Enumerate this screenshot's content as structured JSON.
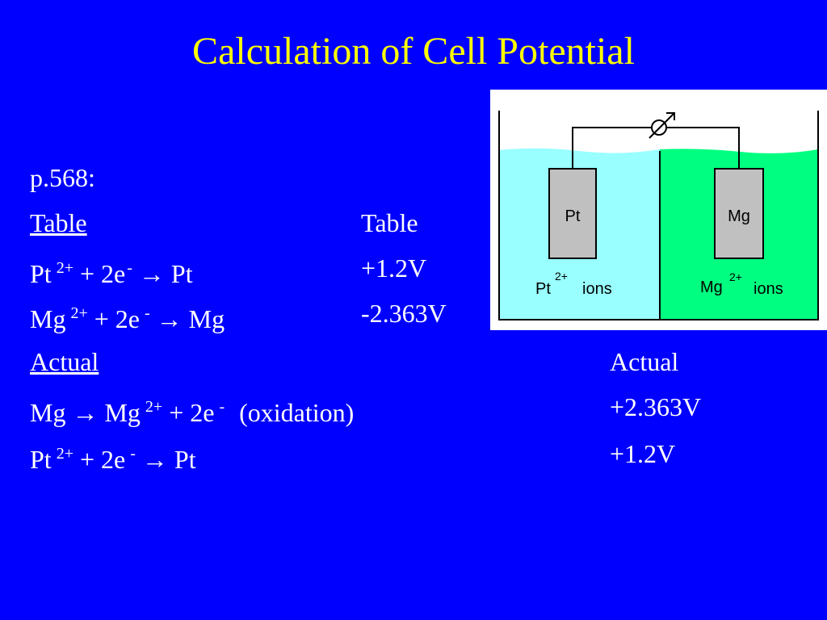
{
  "title": "Calculation of Cell Potential",
  "reference": "p.568:",
  "table_header": [
    "Table",
    "Table"
  ],
  "table_rows": [
    {
      "equation": [
        "Pt",
        "2+",
        "+ 2e",
        "-",
        "→",
        "Pt"
      ],
      "potential": "+1.2V"
    },
    {
      "equation": [
        "Mg",
        "2+",
        "+ 2e",
        "-",
        "→",
        "Mg"
      ],
      "potential": "-2.363V"
    }
  ],
  "actual_header": [
    "Actual",
    "Actual"
  ],
  "actual_rows": [
    {
      "equation": [
        "Mg",
        "→",
        "Mg",
        "2+",
        "+ 2e",
        "-",
        "(oxidation)"
      ],
      "potential": "+2.363V"
    },
    {
      "equation": [
        "Pt",
        "2+",
        "+ 2e",
        "-",
        "→",
        "Pt"
      ],
      "potential": "+1.2V"
    }
  ],
  "diagram": {
    "left_electrode": "Pt",
    "right_electrode": "Mg",
    "left_solution": [
      "Pt",
      "2+",
      "ions"
    ],
    "right_solution": [
      "Mg",
      "2+",
      "ions"
    ]
  }
}
